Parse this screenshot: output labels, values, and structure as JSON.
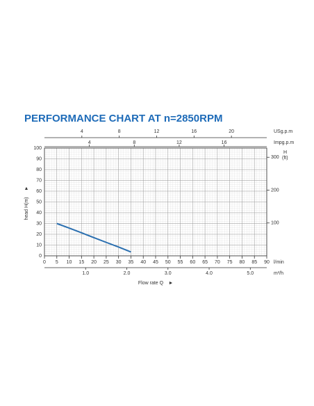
{
  "chart_data": {
    "type": "line",
    "title": "PERFORMANCE CHART AT n=2850RPM",
    "x": [
      5,
      10,
      15,
      20,
      25,
      30,
      35
    ],
    "series": [
      {
        "color": "#2a6fb0",
        "values": [
          30,
          25.8,
          21.4,
          16.9,
          12.5,
          8.2,
          3.6
        ]
      }
    ],
    "xlim": [
      0,
      90
    ],
    "xticks": [
      0,
      5,
      10,
      15,
      20,
      25,
      30,
      35,
      40,
      45,
      50,
      55,
      60,
      65,
      70,
      75,
      80,
      85,
      90
    ],
    "x_unit": "l/min",
    "x_label": "Flow rate Q",
    "ylim": [
      0,
      100
    ],
    "yticks": [
      0,
      10,
      20,
      30,
      40,
      50,
      60,
      70,
      80,
      90,
      100
    ],
    "y_label": "head H(m)",
    "y2lim": [
      0,
      328
    ],
    "y2ticks": [
      100,
      200,
      300
    ],
    "y2_label": "H",
    "y2_unit": "(ft)",
    "grid": true,
    "top_axes": [
      {
        "unit": "USg.p.m",
        "lim": [
          0,
          23.78
        ],
        "ticks": [
          4,
          8,
          12,
          16,
          20
        ]
      },
      {
        "unit": "Impg.p.m",
        "lim": [
          0,
          19.8
        ],
        "ticks": [
          4,
          8,
          12,
          16
        ]
      }
    ],
    "bottom_axis2": {
      "unit": "m³/h",
      "lim": [
        0,
        5.4
      ],
      "ticks": [
        {
          "value": 1,
          "label": "1.0"
        },
        {
          "value": 2,
          "label": "2.0"
        },
        {
          "value": 3,
          "label": "3.0"
        },
        {
          "value": 4,
          "label": "4.0"
        },
        {
          "value": 5,
          "label": "5.0"
        }
      ]
    }
  }
}
